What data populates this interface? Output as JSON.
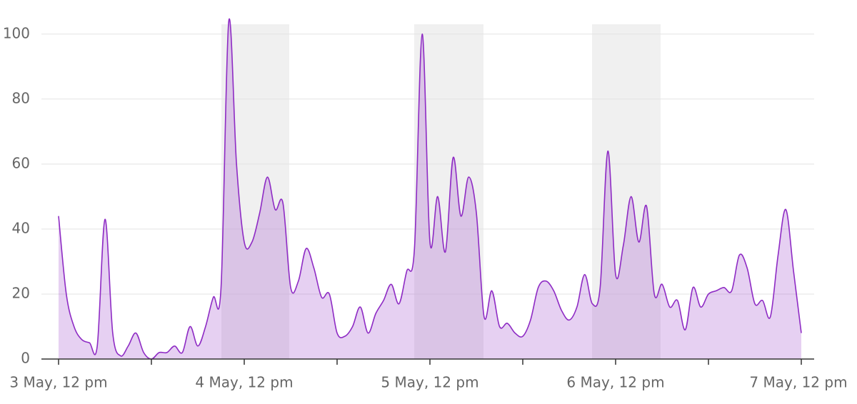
{
  "chart_data": {
    "type": "area",
    "categories": [
      "3 May, 12 pm",
      null,
      null,
      null,
      null,
      null,
      null,
      null,
      null,
      null,
      null,
      null,
      null,
      null,
      null,
      null,
      null,
      null,
      null,
      null,
      null,
      null,
      null,
      null,
      "4 May, 12 pm",
      null,
      null,
      null,
      null,
      null,
      null,
      null,
      null,
      null,
      null,
      null,
      null,
      null,
      null,
      null,
      null,
      null,
      null,
      null,
      null,
      null,
      null,
      null,
      "5 May, 12 pm",
      null,
      null,
      null,
      null,
      null,
      null,
      null,
      null,
      null,
      null,
      null,
      null,
      null,
      null,
      null,
      null,
      null,
      null,
      null,
      null,
      null,
      null,
      null,
      "6 May, 12 pm",
      null,
      null,
      null,
      null,
      null,
      null,
      null,
      null,
      null,
      null,
      null,
      null,
      null,
      null,
      null,
      null,
      null,
      null,
      null,
      null,
      null,
      null,
      null,
      "7 May, 12 pm"
    ],
    "values": [
      44,
      20,
      10,
      6,
      5,
      4,
      43,
      8,
      1,
      4,
      8,
      2,
      0,
      2,
      2,
      4,
      2,
      10,
      4,
      10,
      19,
      22,
      104,
      60,
      36,
      36,
      45,
      56,
      46,
      48,
      22,
      24,
      34,
      28,
      19,
      20,
      8,
      7,
      10,
      16,
      8,
      14,
      18,
      23,
      17,
      27,
      34,
      100,
      36,
      50,
      33,
      62,
      44,
      56,
      45,
      13,
      21,
      10,
      11,
      8,
      7,
      12,
      22,
      24,
      21,
      15,
      12,
      16,
      26,
      17,
      22,
      64,
      26,
      35,
      50,
      36,
      47,
      20,
      23,
      16,
      18,
      9,
      22,
      16,
      20,
      21,
      22,
      21,
      32,
      28,
      17,
      18,
      13,
      32,
      46,
      27,
      8
    ],
    "color": "#8e2bc4",
    "ylim": [
      0,
      105
    ],
    "yticks": [
      0,
      20,
      40,
      60,
      80,
      100
    ],
    "grid": true
  }
}
